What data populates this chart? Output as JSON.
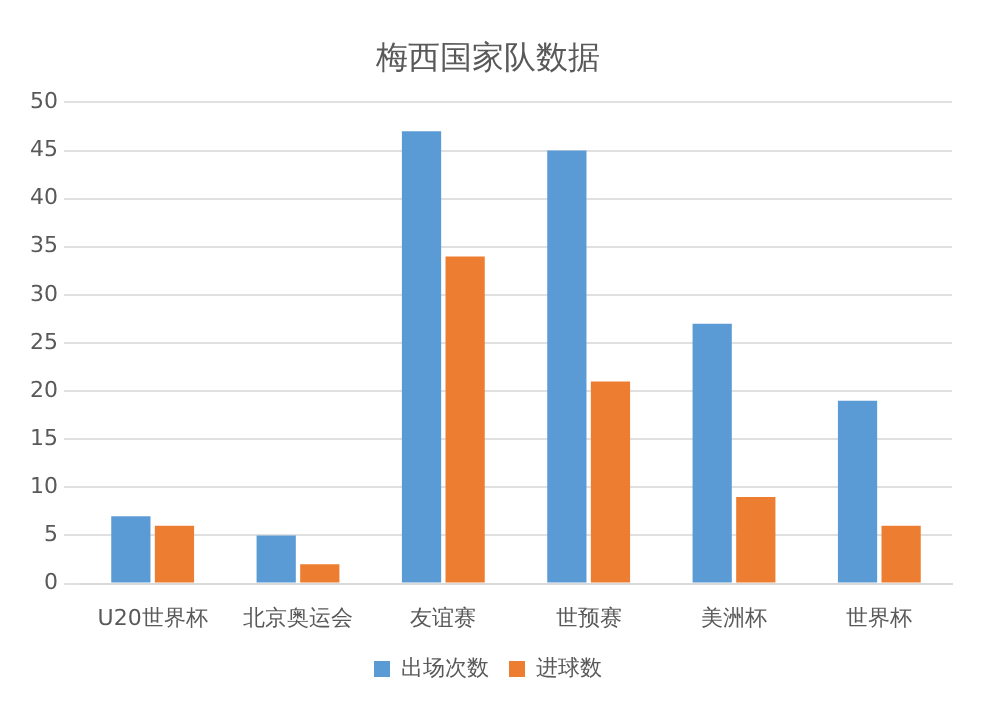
{
  "chart_data": {
    "type": "bar",
    "title": "梅西国家队数据",
    "categories": [
      "U20世界杯",
      "北京奥运会",
      "友谊赛",
      "世预赛",
      "美洲杯",
      "世界杯"
    ],
    "series": [
      {
        "name": "出场次数",
        "color": "#5b9bd5",
        "values": [
          7,
          5,
          47,
          45,
          27,
          19
        ]
      },
      {
        "name": "进球数",
        "color": "#ed7d31",
        "values": [
          6,
          2,
          34,
          21,
          9,
          6
        ]
      }
    ],
    "ylim": [
      0,
      50
    ],
    "yticks": [
      0,
      5,
      10,
      15,
      20,
      25,
      30,
      35,
      40,
      45,
      50
    ],
    "grid": "y",
    "legend": "bottom"
  }
}
